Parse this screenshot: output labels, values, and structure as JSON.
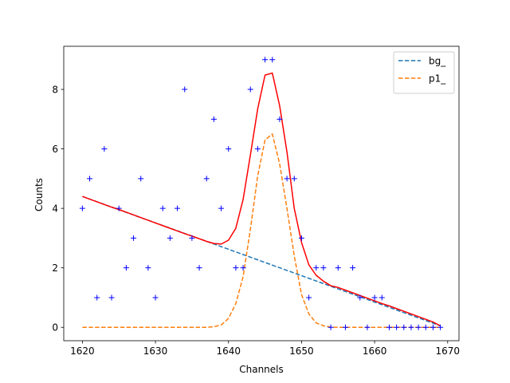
{
  "chart_data": {
    "type": "scatter",
    "xlabel": "Channels",
    "ylabel": "Counts",
    "xlim": [
      1617.45,
      1671.55
    ],
    "ylim": [
      -0.45,
      9.45
    ],
    "xticks": [
      1620,
      1630,
      1640,
      1650,
      1660,
      1670
    ],
    "yticks": [
      0,
      2,
      4,
      6,
      8
    ],
    "grid": false,
    "legend_position": "upper right",
    "data_points": {
      "marker": "+",
      "color": "#0000ff",
      "x": [
        1620,
        1621,
        1622,
        1623,
        1624,
        1625,
        1626,
        1627,
        1628,
        1629,
        1630,
        1631,
        1632,
        1633,
        1634,
        1635,
        1636,
        1637,
        1638,
        1639,
        1640,
        1641,
        1642,
        1643,
        1644,
        1645,
        1646,
        1647,
        1648,
        1649,
        1650,
        1651,
        1652,
        1653,
        1654,
        1655,
        1656,
        1657,
        1658,
        1659,
        1660,
        1661,
        1662,
        1663,
        1664,
        1665,
        1666,
        1667,
        1668,
        1669
      ],
      "y": [
        4,
        5,
        1,
        6,
        1,
        4,
        2,
        3,
        5,
        2,
        1,
        4,
        3,
        4,
        8,
        3,
        2,
        5,
        7,
        4,
        6,
        2,
        2,
        8,
        6,
        9,
        9,
        7,
        5,
        5,
        3,
        1,
        2,
        2,
        0,
        2,
        0,
        2,
        1,
        0,
        1,
        1,
        0,
        0,
        0,
        0,
        0,
        0,
        0,
        0
      ]
    },
    "series": [
      {
        "name": "bg_",
        "style": "dashed",
        "color": "#1f77b4",
        "x": [
          1620,
          1669
        ],
        "y": [
          4.4,
          0.05
        ]
      },
      {
        "name": "p1_",
        "style": "dashed",
        "color": "#ff7f0e",
        "x": [
          1620,
          1621,
          1622,
          1623,
          1624,
          1625,
          1626,
          1627,
          1628,
          1629,
          1630,
          1631,
          1632,
          1633,
          1634,
          1635,
          1636,
          1637,
          1638,
          1639,
          1640,
          1641,
          1642,
          1643,
          1644,
          1645,
          1646,
          1647,
          1648,
          1649,
          1650,
          1651,
          1652,
          1653,
          1654,
          1655,
          1656,
          1657,
          1658,
          1659,
          1660,
          1661,
          1662,
          1663,
          1664,
          1665,
          1666,
          1667,
          1668,
          1669
        ],
        "y": [
          0,
          0,
          0,
          0,
          0,
          0,
          0,
          0,
          0,
          0,
          0,
          0,
          0,
          0,
          0,
          0,
          0,
          0,
          0.02,
          0.08,
          0.3,
          0.8,
          1.7,
          3.3,
          5.1,
          6.3,
          6.5,
          5.5,
          4.0,
          2.4,
          1.1,
          0.45,
          0.15,
          0.05,
          0.01,
          0,
          0,
          0,
          0,
          0,
          0,
          0,
          0,
          0,
          0,
          0,
          0,
          0,
          0,
          0
        ]
      },
      {
        "name": "",
        "style": "solid",
        "color": "#ff0000",
        "x": [
          1620,
          1621,
          1622,
          1623,
          1624,
          1625,
          1626,
          1627,
          1628,
          1629,
          1630,
          1631,
          1632,
          1633,
          1634,
          1635,
          1636,
          1637,
          1638,
          1639,
          1640,
          1641,
          1642,
          1643,
          1644,
          1645,
          1646,
          1647,
          1648,
          1649,
          1650,
          1651,
          1652,
          1653,
          1654,
          1655,
          1656,
          1657,
          1658,
          1659,
          1660,
          1661,
          1662,
          1663,
          1664,
          1665,
          1666,
          1667,
          1668,
          1669
        ],
        "y": [
          4.4,
          4.31,
          4.22,
          4.13,
          4.04,
          3.96,
          3.87,
          3.78,
          3.69,
          3.6,
          3.51,
          3.42,
          3.33,
          3.24,
          3.15,
          3.07,
          2.98,
          2.89,
          2.82,
          2.8,
          2.93,
          3.33,
          4.3,
          5.8,
          7.35,
          8.48,
          8.55,
          7.45,
          5.9,
          4.0,
          2.85,
          2.1,
          1.75,
          1.55,
          1.4,
          1.34,
          1.25,
          1.16,
          1.07,
          0.98,
          0.89,
          0.8,
          0.72,
          0.63,
          0.54,
          0.45,
          0.36,
          0.27,
          0.18,
          0.05
        ]
      }
    ]
  }
}
